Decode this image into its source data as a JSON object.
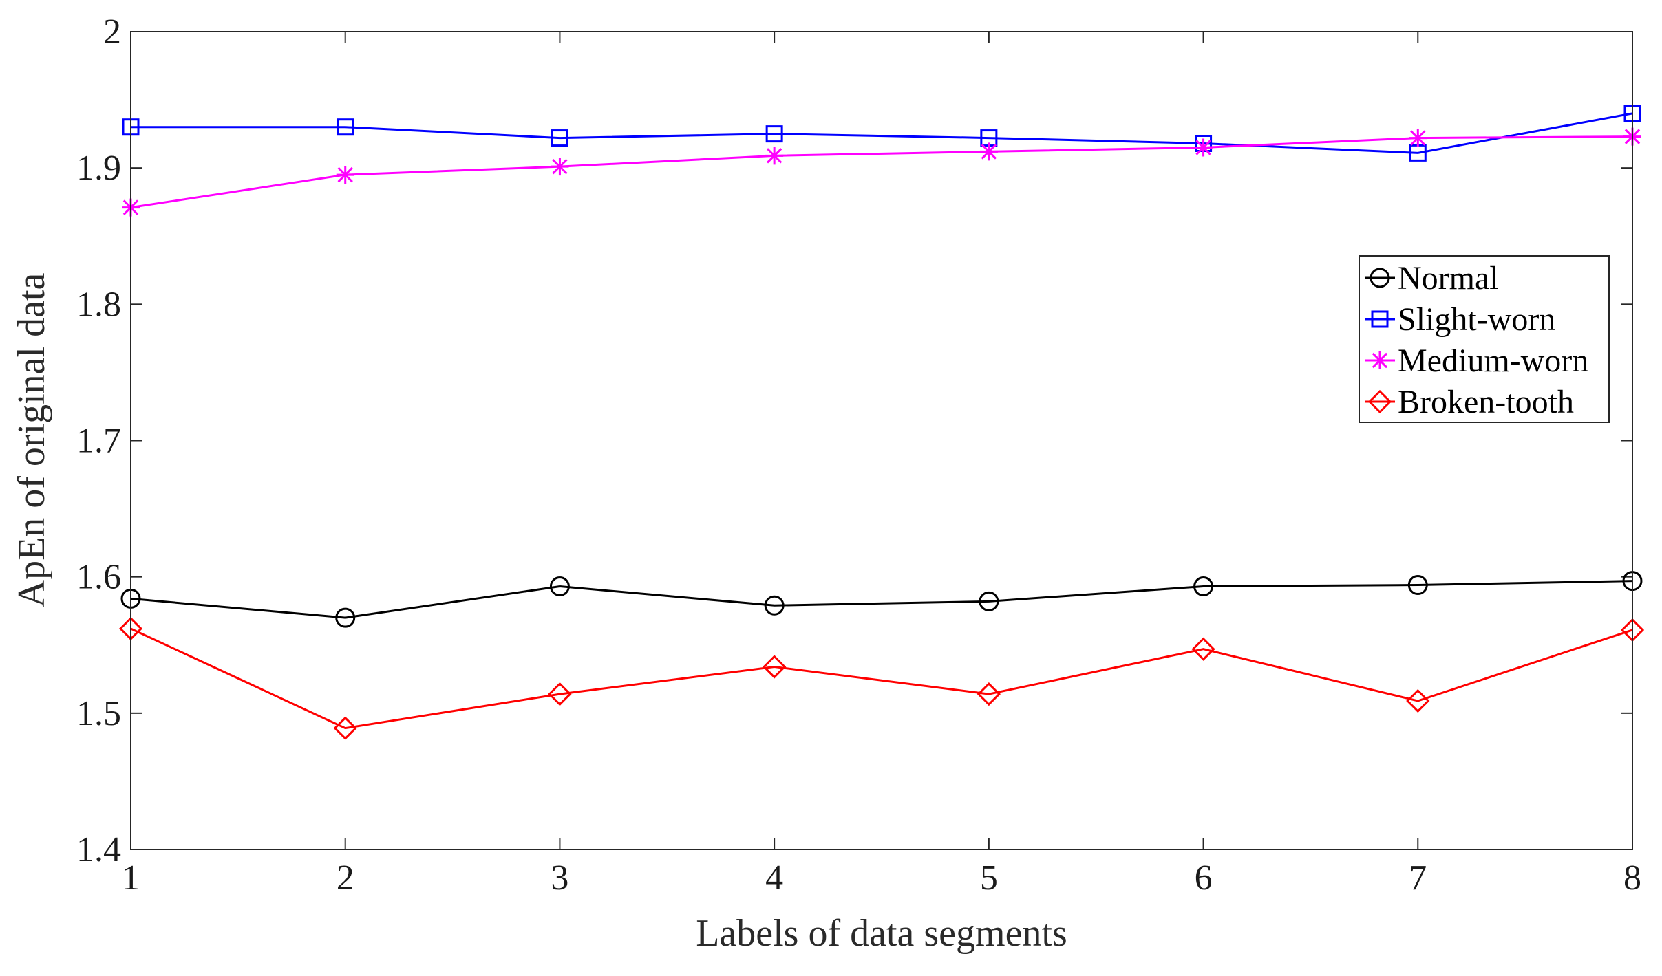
{
  "chart_data": {
    "type": "line",
    "title": "",
    "xlabel": "Labels of data segments",
    "ylabel": "ApEn of original data",
    "x": [
      1,
      2,
      3,
      4,
      5,
      6,
      7,
      8
    ],
    "xticks": [
      "1",
      "2",
      "3",
      "4",
      "5",
      "6",
      "7",
      "8"
    ],
    "xlim": [
      1,
      8
    ],
    "ylim": [
      1.4,
      2.0
    ],
    "yticks": [
      "1.4",
      "1.5",
      "1.6",
      "1.7",
      "1.8",
      "1.9",
      "2"
    ],
    "grid": false,
    "legend_position": "right",
    "series": [
      {
        "name": "Normal",
        "color": "#000000",
        "marker": "circle",
        "values": [
          1.584,
          1.57,
          1.593,
          1.579,
          1.582,
          1.593,
          1.594,
          1.597
        ]
      },
      {
        "name": "Slight-worn",
        "color": "#0000ff",
        "marker": "square",
        "values": [
          1.93,
          1.93,
          1.922,
          1.925,
          1.922,
          1.918,
          1.911,
          1.94
        ]
      },
      {
        "name": "Medium-worn",
        "color": "#ff00ff",
        "marker": "asterisk",
        "values": [
          1.871,
          1.895,
          1.901,
          1.909,
          1.912,
          1.915,
          1.922,
          1.923
        ]
      },
      {
        "name": "Broken-tooth",
        "color": "#ff0000",
        "marker": "diamond",
        "values": [
          1.562,
          1.489,
          1.514,
          1.534,
          1.514,
          1.547,
          1.509,
          1.561
        ]
      }
    ]
  }
}
